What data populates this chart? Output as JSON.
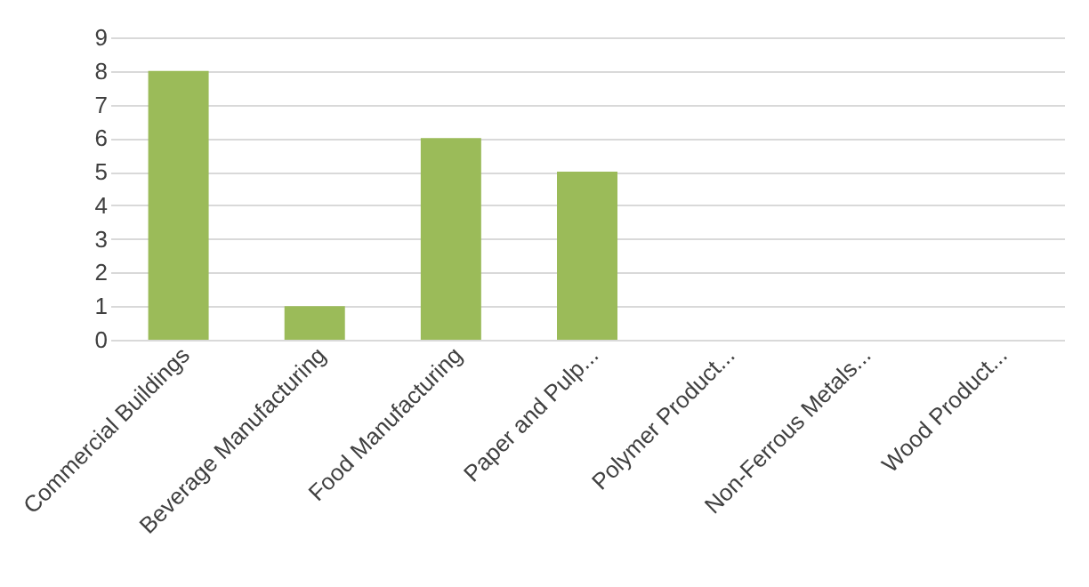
{
  "chart_data": {
    "type": "bar",
    "categories": [
      "Commercial Buildings",
      "Beverage Manufacturing",
      "Food Manufacturing",
      "Paper and Pulp...",
      "Polymer Product...",
      "Non-Ferrous Metals...",
      "Wood Product..."
    ],
    "values": [
      8,
      1,
      6,
      5,
      0,
      0,
      0
    ],
    "color": "#9bbb59",
    "ylim": [
      0,
      9
    ],
    "yticks": [
      0,
      1,
      2,
      3,
      4,
      5,
      6,
      7,
      8,
      9
    ],
    "grid": "y"
  }
}
